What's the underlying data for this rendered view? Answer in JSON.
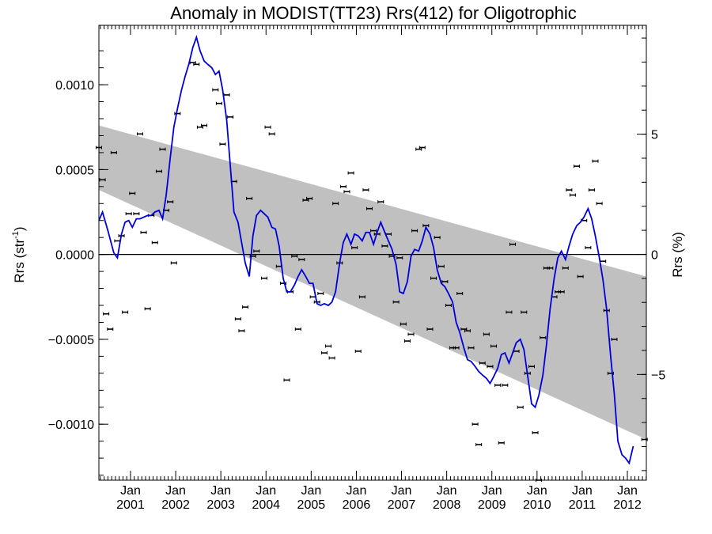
{
  "chart_data": {
    "type": "line",
    "title": "Anomaly in MODIST(TT23) Rrs(412) for Oligotrophic",
    "ylabel_left": "Rrs (str",
    "ylabel_left_sup": "-1",
    "ylabel_left_close": ")",
    "ylabel_right": "Rrs (%)",
    "xlim": [
      2000.3,
      2012.42
    ],
    "ylim": [
      -0.00133,
      0.00135
    ],
    "y2lim": [
      -9.4,
      9.53
    ],
    "yticks": [
      {
        "value": 0.001,
        "label": "0.0010"
      },
      {
        "value": 0.0005,
        "label": "0.0005"
      },
      {
        "value": 0.0,
        "label": "0.0000"
      },
      {
        "value": -0.0005,
        "label": "−0.0005"
      },
      {
        "value": -0.001,
        "label": "−0.0010"
      }
    ],
    "y2ticks": [
      {
        "value": 5,
        "label": "5"
      },
      {
        "value": 0,
        "label": "0"
      },
      {
        "value": -5,
        "label": "−5"
      }
    ],
    "xticks": [
      {
        "value": 2001,
        "top": "Jan",
        "bottom": "2001"
      },
      {
        "value": 2002,
        "top": "Jan",
        "bottom": "2002"
      },
      {
        "value": 2003,
        "top": "Jan",
        "bottom": "2003"
      },
      {
        "value": 2004,
        "top": "Jan",
        "bottom": "2004"
      },
      {
        "value": 2005,
        "top": "Jan",
        "bottom": "2005"
      },
      {
        "value": 2006,
        "top": "Jan",
        "bottom": "2006"
      },
      {
        "value": 2007,
        "top": "Jan",
        "bottom": "2007"
      },
      {
        "value": 2008,
        "top": "Jan",
        "bottom": "2008"
      },
      {
        "value": 2009,
        "top": "Jan",
        "bottom": "2009"
      },
      {
        "value": 2010,
        "top": "Jan",
        "bottom": "2010"
      },
      {
        "value": 2011,
        "top": "Jan",
        "bottom": "2011"
      },
      {
        "value": 2012,
        "top": "Jan",
        "bottom": "2012"
      }
    ],
    "trend_band": {
      "upper": [
        [
          2000.3,
          0.00076
        ],
        [
          2012.42,
          -0.00013
        ]
      ],
      "lower": [
        [
          2000.3,
          0.00038
        ],
        [
          2012.42,
          -0.00109
        ]
      ]
    },
    "zero_line": 0.0,
    "colors": {
      "line": "#0000dd",
      "band": "#c0c0c0",
      "points": "#000000"
    },
    "points": [
      [
        2000.3,
        0.00063
      ],
      [
        2000.38,
        0.00044
      ],
      [
        2000.46,
        -0.00035
      ],
      [
        2000.55,
        -0.00044
      ],
      [
        2000.63,
        0.0006
      ],
      [
        2000.71,
        8e-05
      ],
      [
        2000.8,
        0.00011
      ],
      [
        2000.88,
        -0.00034
      ],
      [
        2000.96,
        0.00024
      ],
      [
        2001.04,
        0.00036
      ],
      [
        2001.13,
        0.00024
      ],
      [
        2001.21,
        0.00071
      ],
      [
        2001.29,
        0.00013
      ],
      [
        2001.38,
        -0.00032
      ],
      [
        2001.46,
        0.00023
      ],
      [
        2001.54,
        7e-05
      ],
      [
        2001.63,
        0.00049
      ],
      [
        2001.71,
        0.00062
      ],
      [
        2001.79,
        0.00026
      ],
      [
        2001.88,
        0.00031
      ],
      [
        2001.96,
        -5e-05
      ],
      [
        2002.04,
        0.00083
      ],
      [
        2002.38,
        0.00113
      ],
      [
        2002.46,
        0.00112
      ],
      [
        2002.54,
        0.00075
      ],
      [
        2002.63,
        0.00076
      ],
      [
        2002.88,
        0.00097
      ],
      [
        2002.96,
        0.00089
      ],
      [
        2003.04,
        0.00065
      ],
      [
        2003.13,
        0.00094
      ],
      [
        2003.21,
        0.00081
      ],
      [
        2003.29,
        0.00043
      ],
      [
        2003.38,
        -0.00038
      ],
      [
        2003.46,
        -0.00045
      ],
      [
        2003.54,
        -0.00031
      ],
      [
        2003.63,
        0.00033
      ],
      [
        2003.71,
        -1e-05
      ],
      [
        2003.79,
        2e-05
      ],
      [
        2003.96,
        -0.00014
      ],
      [
        2004.04,
        0.00075
      ],
      [
        2004.13,
        0.00071
      ],
      [
        2004.29,
        -7e-05
      ],
      [
        2004.38,
        -0.00017
      ],
      [
        2004.46,
        -0.00074
      ],
      [
        2004.54,
        -0.00022
      ],
      [
        2004.63,
        -1e-05
      ],
      [
        2004.71,
        -0.00044
      ],
      [
        2004.79,
        -3e-05
      ],
      [
        2004.88,
        0.00032
      ],
      [
        2004.96,
        0.00033
      ],
      [
        2005.04,
        -0.00025
      ],
      [
        2005.13,
        -0.00028
      ],
      [
        2005.21,
        -0.00023
      ],
      [
        2005.29,
        -0.00058
      ],
      [
        2005.38,
        -0.00054
      ],
      [
        2005.46,
        -0.00061
      ],
      [
        2005.54,
        0.0003
      ],
      [
        2005.63,
        -5e-05
      ],
      [
        2005.71,
        0.0004
      ],
      [
        2005.79,
        0.00037
      ],
      [
        2005.88,
        0.00048
      ],
      [
        2005.96,
        4e-05
      ],
      [
        2006.04,
        -0.00057
      ],
      [
        2006.13,
        -0.00025
      ],
      [
        2006.21,
        0.00038
      ],
      [
        2006.29,
        0.00027
      ],
      [
        2006.38,
        0.00014
      ],
      [
        2006.46,
        0.00012
      ],
      [
        2006.54,
        0.00031
      ],
      [
        2006.63,
        5e-05
      ],
      [
        2006.71,
        0.00012
      ],
      [
        2006.79,
        -1e-05
      ],
      [
        2006.88,
        -0.00028
      ],
      [
        2006.96,
        -2e-05
      ],
      [
        2007.04,
        -0.00041
      ],
      [
        2007.13,
        -0.00051
      ],
      [
        2007.21,
        -0.00047
      ],
      [
        2007.29,
        0.00014
      ],
      [
        2007.38,
        0.00062
      ],
      [
        2007.46,
        0.00063
      ],
      [
        2007.54,
        0.00017
      ],
      [
        2007.63,
        -0.00044
      ],
      [
        2007.71,
        -0.00014
      ],
      [
        2007.79,
        0.0001
      ],
      [
        2007.88,
        -7e-05
      ],
      [
        2007.96,
        -0.00016
      ],
      [
        2008.04,
        -0.0003
      ],
      [
        2008.13,
        -0.00055
      ],
      [
        2008.21,
        -0.00055
      ],
      [
        2008.29,
        -0.00023
      ],
      [
        2008.38,
        -0.00044
      ],
      [
        2008.46,
        -0.00045
      ],
      [
        2008.54,
        -0.00055
      ],
      [
        2008.63,
        -0.001
      ],
      [
        2008.71,
        -0.00112
      ],
      [
        2008.79,
        -0.00064
      ],
      [
        2008.88,
        -0.00047
      ],
      [
        2008.96,
        -0.00066
      ],
      [
        2009.04,
        -0.00054
      ],
      [
        2009.13,
        -0.00077
      ],
      [
        2009.21,
        -0.00111
      ],
      [
        2009.29,
        -0.00077
      ],
      [
        2009.38,
        -0.00034
      ],
      [
        2009.46,
        6e-05
      ],
      [
        2009.54,
        -0.00057
      ],
      [
        2009.63,
        -0.0009
      ],
      [
        2009.71,
        -0.00034
      ],
      [
        2009.79,
        -0.0007
      ],
      [
        2009.88,
        -0.00066
      ],
      [
        2009.96,
        -0.00105
      ],
      [
        2010.04,
        -0.00133
      ],
      [
        2010.13,
        -0.00049
      ],
      [
        2010.21,
        -8e-05
      ],
      [
        2010.29,
        -8e-05
      ],
      [
        2010.38,
        -0.00025
      ],
      [
        2010.46,
        -0.00022
      ],
      [
        2010.54,
        -0.00022
      ],
      [
        2010.63,
        -8e-05
      ],
      [
        2010.71,
        0.00038
      ],
      [
        2010.79,
        0.00035
      ],
      [
        2010.88,
        0.00052
      ],
      [
        2010.96,
        -0.00013
      ],
      [
        2011.04,
        0.0002
      ],
      [
        2011.13,
        4e-05
      ],
      [
        2011.21,
        0.00038
      ],
      [
        2011.29,
        0.00055
      ],
      [
        2011.38,
        0.0003
      ],
      [
        2011.46,
        -4e-05
      ],
      [
        2011.54,
        -0.00033
      ],
      [
        2011.63,
        -0.0007
      ],
      [
        2011.71,
        -0.0005
      ],
      [
        2012.38,
        -0.00109
      ]
    ],
    "line": [
      [
        2000.3,
        0.0002
      ],
      [
        2000.38,
        0.00025
      ],
      [
        2000.5,
        0.00014
      ],
      [
        2000.63,
        1e-05
      ],
      [
        2000.71,
        -2e-05
      ],
      [
        2000.8,
        0.00012
      ],
      [
        2000.88,
        0.00019
      ],
      [
        2000.96,
        0.0002
      ],
      [
        2001.04,
        0.00016
      ],
      [
        2001.13,
        0.00021
      ],
      [
        2001.21,
        0.00021
      ],
      [
        2001.38,
        0.00023
      ],
      [
        2001.46,
        0.00023
      ],
      [
        2001.54,
        0.00025
      ],
      [
        2001.63,
        0.00026
      ],
      [
        2001.71,
        0.00021
      ],
      [
        2001.79,
        0.00035
      ],
      [
        2001.88,
        0.00057
      ],
      [
        2001.96,
        0.00075
      ],
      [
        2002.04,
        0.00086
      ],
      [
        2002.13,
        0.00097
      ],
      [
        2002.21,
        0.00105
      ],
      [
        2002.29,
        0.00112
      ],
      [
        2002.38,
        0.00122
      ],
      [
        2002.46,
        0.00128
      ],
      [
        2002.54,
        0.0012
      ],
      [
        2002.63,
        0.00114
      ],
      [
        2002.71,
        0.00112
      ],
      [
        2002.8,
        0.0011
      ],
      [
        2002.88,
        0.00106
      ],
      [
        2002.96,
        0.00108
      ],
      [
        2003.04,
        0.00097
      ],
      [
        2003.13,
        0.00079
      ],
      [
        2003.21,
        0.00052
      ],
      [
        2003.29,
        0.00025
      ],
      [
        2003.38,
        0.00019
      ],
      [
        2003.46,
        7e-05
      ],
      [
        2003.54,
        -5e-05
      ],
      [
        2003.63,
        -0.00013
      ],
      [
        2003.71,
        0.00011
      ],
      [
        2003.79,
        0.00023
      ],
      [
        2003.88,
        0.00026
      ],
      [
        2004.04,
        0.00022
      ],
      [
        2004.13,
        0.00016
      ],
      [
        2004.21,
        0.00015
      ],
      [
        2004.29,
        5e-05
      ],
      [
        2004.38,
        -0.00014
      ],
      [
        2004.46,
        -0.00022
      ],
      [
        2004.54,
        -0.00022
      ],
      [
        2004.63,
        -0.00018
      ],
      [
        2004.71,
        -0.00013
      ],
      [
        2004.79,
        -9e-05
      ],
      [
        2004.88,
        -0.00013
      ],
      [
        2004.96,
        -0.00017
      ],
      [
        2005.04,
        -0.00017
      ],
      [
        2005.13,
        -0.00029
      ],
      [
        2005.21,
        -0.0003
      ],
      [
        2005.29,
        -0.00029
      ],
      [
        2005.38,
        -0.0003
      ],
      [
        2005.46,
        -0.00028
      ],
      [
        2005.54,
        -0.00022
      ],
      [
        2005.63,
        -5e-05
      ],
      [
        2005.71,
        7e-05
      ],
      [
        2005.79,
        0.00012
      ],
      [
        2005.88,
        6e-05
      ],
      [
        2005.96,
        0.00012
      ],
      [
        2006.04,
        0.00011
      ],
      [
        2006.13,
        8e-05
      ],
      [
        2006.21,
        0.00013
      ],
      [
        2006.29,
        0.00013
      ],
      [
        2006.38,
        6e-05
      ],
      [
        2006.46,
        0.00013
      ],
      [
        2006.54,
        0.00019
      ],
      [
        2006.63,
        0.00013
      ],
      [
        2006.71,
        8e-05
      ],
      [
        2006.79,
        3e-05
      ],
      [
        2006.88,
        -6e-05
      ],
      [
        2006.96,
        -0.00022
      ],
      [
        2007.04,
        -0.00023
      ],
      [
        2007.13,
        -0.00016
      ],
      [
        2007.21,
        -1e-05
      ],
      [
        2007.29,
        3e-05
      ],
      [
        2007.38,
        2e-05
      ],
      [
        2007.46,
        8e-05
      ],
      [
        2007.54,
        0.00016
      ],
      [
        2007.63,
        0.00012
      ],
      [
        2007.71,
        4e-05
      ],
      [
        2007.79,
        -9e-05
      ],
      [
        2007.88,
        -0.00017
      ],
      [
        2007.96,
        -0.00019
      ],
      [
        2008.04,
        -0.00023
      ],
      [
        2008.13,
        -0.00028
      ],
      [
        2008.21,
        -0.0004
      ],
      [
        2008.29,
        -0.00046
      ],
      [
        2008.38,
        -0.00055
      ],
      [
        2008.46,
        -0.00062
      ],
      [
        2008.54,
        -0.00063
      ],
      [
        2008.63,
        -0.00066
      ],
      [
        2008.71,
        -0.00069
      ],
      [
        2008.79,
        -0.00071
      ],
      [
        2008.88,
        -0.00073
      ],
      [
        2008.96,
        -0.00076
      ],
      [
        2009.04,
        -0.00072
      ],
      [
        2009.13,
        -0.00067
      ],
      [
        2009.21,
        -0.00059
      ],
      [
        2009.29,
        -0.00058
      ],
      [
        2009.38,
        -0.00064
      ],
      [
        2009.46,
        -0.00058
      ],
      [
        2009.54,
        -0.00052
      ],
      [
        2009.63,
        -0.0005
      ],
      [
        2009.71,
        -0.00056
      ],
      [
        2009.79,
        -0.00071
      ],
      [
        2009.88,
        -0.00088
      ],
      [
        2009.96,
        -0.0009
      ],
      [
        2010.04,
        -0.00083
      ],
      [
        2010.13,
        -0.00071
      ],
      [
        2010.21,
        -0.00053
      ],
      [
        2010.29,
        -0.00032
      ],
      [
        2010.38,
        -0.00014
      ],
      [
        2010.46,
        -2e-05
      ],
      [
        2010.54,
        2e-05
      ],
      [
        2010.63,
        -3e-05
      ],
      [
        2010.71,
        5e-05
      ],
      [
        2010.79,
        0.00012
      ],
      [
        2010.88,
        0.00017
      ],
      [
        2010.96,
        0.00019
      ],
      [
        2011.04,
        0.00022
      ],
      [
        2011.13,
        0.00027
      ],
      [
        2011.21,
        0.00021
      ],
      [
        2011.29,
        0.00011
      ],
      [
        2011.38,
        -2e-05
      ],
      [
        2011.46,
        -0.00015
      ],
      [
        2011.54,
        -0.00032
      ],
      [
        2011.63,
        -0.0006
      ],
      [
        2011.71,
        -0.00082
      ],
      [
        2011.79,
        -0.0011
      ],
      [
        2011.88,
        -0.00118
      ],
      [
        2011.96,
        -0.0012
      ],
      [
        2012.04,
        -0.00123
      ],
      [
        2012.13,
        -0.00113
      ]
    ]
  }
}
